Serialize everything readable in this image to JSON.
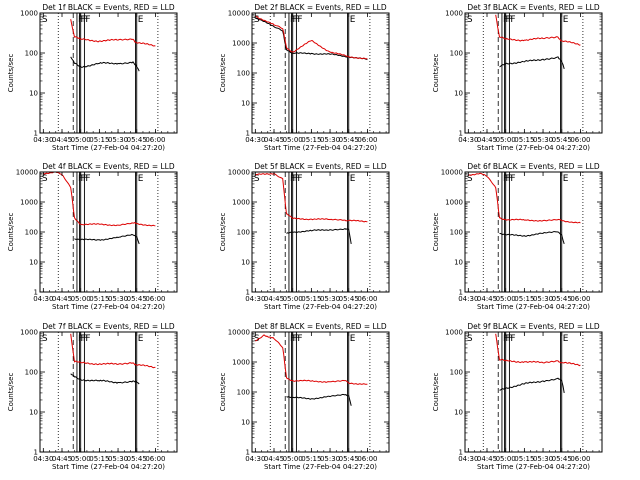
{
  "colors": {
    "events": "#000000",
    "lld": "#dd0000",
    "axes": "#000000",
    "background": "#ffffff"
  },
  "shared": {
    "xlabel": "Start Time (27-Feb-04 04:27:20)",
    "ylabel": "Counts/sec",
    "x_ticks": [
      "04:30",
      "04:45",
      "05:00",
      "05:15",
      "05:30",
      "05:45",
      "06:00"
    ],
    "x_range_minutes_since_0427": [
      0,
      110
    ],
    "y_scale": "log",
    "y_ticks": [
      "1",
      "10",
      "100",
      "1000",
      "10000"
    ]
  },
  "chart_data": [
    {
      "type": "line",
      "title": "Det 1f BLACK = Events, RED = LLD",
      "ylim": [
        1,
        1000
      ],
      "series": [
        {
          "name": "Events",
          "x": [
            "04:52",
            "04:55",
            "05:00",
            "05:15",
            "05:30",
            "05:42",
            "05:45",
            "05:47"
          ],
          "values": [
            80,
            55,
            45,
            55,
            55,
            60,
            45,
            35
          ]
        },
        {
          "name": "LLD",
          "x": [
            "04:52",
            "04:55",
            "05:00",
            "05:15",
            "05:30",
            "05:42",
            "05:45",
            "06:00"
          ],
          "values": [
            700,
            250,
            220,
            200,
            210,
            220,
            180,
            150
          ]
        }
      ],
      "markers": [
        "S",
        "F",
        "F",
        "F",
        "F",
        "E"
      ]
    },
    {
      "type": "line",
      "title": "Det 2f BLACK = Events, RED = LLD",
      "ylim": [
        1,
        10000
      ],
      "series": [
        {
          "name": "Events",
          "x": [
            "04:30",
            "04:45",
            "04:52",
            "04:55",
            "05:00",
            "05:15",
            "05:30",
            "05:45",
            "06:00"
          ],
          "values": [
            7000,
            3500,
            2500,
            600,
            450,
            450,
            420,
            350,
            280
          ]
        },
        {
          "name": "LLD",
          "x": [
            "04:30",
            "04:45",
            "04:52",
            "04:55",
            "05:00",
            "05:15",
            "05:30",
            "05:45",
            "06:00"
          ],
          "values": [
            8000,
            4000,
            3000,
            700,
            500,
            1200,
            500,
            350,
            300
          ]
        }
      ],
      "markers": [
        "S",
        "F",
        "F",
        "F",
        "F",
        "E"
      ]
    },
    {
      "type": "line",
      "title": "Det 3f BLACK = Events, RED = LLD",
      "ylim": [
        1,
        1000
      ],
      "series": [
        {
          "name": "Events",
          "x": [
            "04:55",
            "05:00",
            "05:15",
            "05:30",
            "05:42",
            "05:45",
            "05:47"
          ],
          "values": [
            45,
            55,
            60,
            70,
            80,
            60,
            40
          ]
        },
        {
          "name": "LLD",
          "x": [
            "04:52",
            "04:55",
            "05:00",
            "05:15",
            "05:30",
            "05:42",
            "05:45",
            "06:00"
          ],
          "values": [
            900,
            250,
            220,
            210,
            230,
            250,
            200,
            160
          ]
        }
      ],
      "markers": [
        "S",
        "F",
        "F",
        "F",
        "F",
        "E"
      ]
    },
    {
      "type": "line",
      "title": "Det 4f BLACK = Events, RED = LLD",
      "ylim": [
        1,
        10000
      ],
      "series": [
        {
          "name": "Events",
          "x": [
            "04:55",
            "05:00",
            "05:15",
            "05:30",
            "05:42",
            "05:45",
            "05:47"
          ],
          "values": [
            60,
            55,
            55,
            65,
            80,
            70,
            40
          ]
        },
        {
          "name": "LLD",
          "x": [
            "04:30",
            "04:40",
            "04:45",
            "04:52",
            "04:55",
            "05:00",
            "05:15",
            "05:30",
            "05:42",
            "05:45",
            "06:00"
          ],
          "values": [
            9000,
            10000,
            8000,
            3000,
            300,
            180,
            180,
            170,
            200,
            190,
            160
          ]
        }
      ],
      "markers": [
        "S",
        "F",
        "F",
        "F",
        "F",
        "E"
      ]
    },
    {
      "type": "line",
      "title": "Det 5f BLACK = Events, RED = LLD",
      "ylim": [
        1,
        10000
      ],
      "series": [
        {
          "name": "Events",
          "x": [
            "04:55",
            "05:00",
            "05:15",
            "05:30",
            "05:42",
            "05:45",
            "05:47"
          ],
          "values": [
            90,
            100,
            110,
            120,
            130,
            120,
            40
          ]
        },
        {
          "name": "LLD",
          "x": [
            "04:30",
            "04:45",
            "04:52",
            "04:55",
            "05:00",
            "05:15",
            "05:30",
            "05:42",
            "05:45",
            "06:00"
          ],
          "values": [
            8000,
            9000,
            6000,
            400,
            280,
            270,
            260,
            250,
            240,
            220
          ]
        }
      ],
      "markers": [
        "S",
        "F",
        "F",
        "F",
        "F",
        "E"
      ]
    },
    {
      "type": "line",
      "title": "Det 6f BLACK = Events, RED = LLD",
      "ylim": [
        1,
        10000
      ],
      "series": [
        {
          "name": "Events",
          "x": [
            "04:55",
            "05:00",
            "05:15",
            "05:30",
            "05:42",
            "05:45",
            "05:47"
          ],
          "values": [
            90,
            80,
            75,
            90,
            100,
            80,
            40
          ]
        },
        {
          "name": "LLD",
          "x": [
            "04:30",
            "04:40",
            "04:45",
            "04:52",
            "04:55",
            "05:00",
            "05:15",
            "05:30",
            "05:42",
            "05:45",
            "06:00"
          ],
          "values": [
            8000,
            9000,
            7000,
            3000,
            300,
            260,
            250,
            240,
            260,
            240,
            200
          ]
        }
      ],
      "markers": [
        "S",
        "F",
        "F",
        "F",
        "F",
        "E"
      ]
    },
    {
      "type": "line",
      "title": "Det 7f BLACK = Events, RED = LLD",
      "ylim": [
        1,
        1000
      ],
      "series": [
        {
          "name": "Events",
          "x": [
            "04:52",
            "04:55",
            "05:00",
            "05:15",
            "05:30",
            "05:42",
            "05:45",
            "05:47"
          ],
          "values": [
            90,
            75,
            65,
            60,
            55,
            60,
            55,
            50
          ]
        },
        {
          "name": "LLD",
          "x": [
            "04:52",
            "04:55",
            "05:00",
            "05:15",
            "05:30",
            "05:42",
            "05:45",
            "06:00"
          ],
          "values": [
            900,
            180,
            170,
            160,
            155,
            170,
            150,
            130
          ]
        }
      ],
      "markers": [
        "S",
        "F",
        "F",
        "F",
        "F",
        "E"
      ]
    },
    {
      "type": "line",
      "title": "Det 8f BLACK = Events, RED = LLD",
      "ylim": [
        1,
        10000
      ],
      "series": [
        {
          "name": "Events",
          "x": [
            "04:55",
            "05:00",
            "05:15",
            "05:30",
            "05:42",
            "05:45",
            "05:47"
          ],
          "values": [
            70,
            65,
            60,
            70,
            80,
            75,
            35
          ]
        },
        {
          "name": "LLD",
          "x": [
            "04:30",
            "04:37",
            "04:45",
            "04:52",
            "04:55",
            "05:00",
            "05:15",
            "05:30",
            "05:42",
            "05:45",
            "06:00"
          ],
          "values": [
            5000,
            8000,
            6000,
            3000,
            300,
            240,
            230,
            220,
            240,
            200,
            180
          ]
        }
      ],
      "markers": [
        "S",
        "F",
        "F",
        "F",
        "F",
        "E"
      ]
    },
    {
      "type": "line",
      "title": "Det 9f BLACK = Events, RED = LLD",
      "ylim": [
        1,
        1000
      ],
      "series": [
        {
          "name": "Events",
          "x": [
            "04:55",
            "05:00",
            "05:15",
            "05:30",
            "05:42",
            "05:45",
            "05:47"
          ],
          "values": [
            35,
            40,
            50,
            60,
            70,
            60,
            30
          ]
        },
        {
          "name": "LLD",
          "x": [
            "04:52",
            "04:55",
            "05:00",
            "05:15",
            "05:30",
            "05:42",
            "05:45",
            "06:00"
          ],
          "values": [
            900,
            200,
            190,
            180,
            170,
            190,
            170,
            150
          ]
        }
      ],
      "markers": [
        "S",
        "F",
        "F",
        "F",
        "F",
        "E"
      ]
    }
  ]
}
